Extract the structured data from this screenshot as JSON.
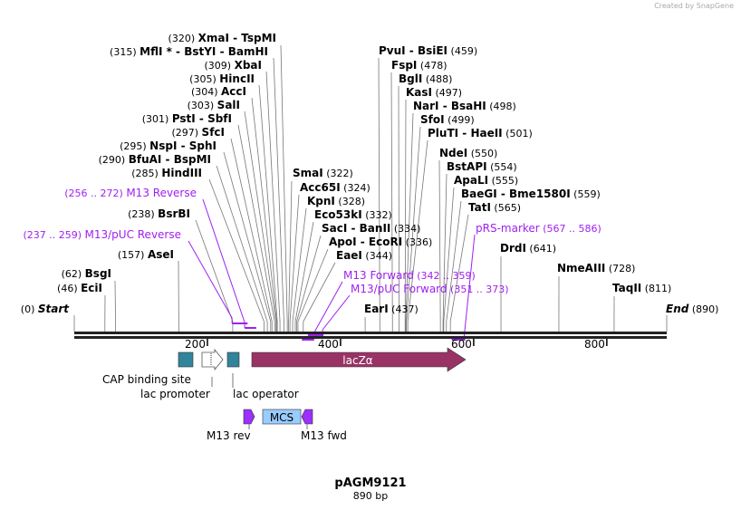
{
  "credit": "Created by SnapGene",
  "plasmid": {
    "name": "pAGM9121",
    "length_label": "890 bp",
    "length": 890
  },
  "ticks": [
    "200",
    "400",
    "600",
    "800"
  ],
  "start": {
    "label": "Start",
    "pos": "(0)"
  },
  "end": {
    "label": "End",
    "pos": "(890)"
  },
  "enzymes": [
    {
      "name": "XmaI  - TspMI",
      "pos": "(320)",
      "site": 320
    },
    {
      "name": "MflI * - BstYI  - BamHI",
      "pos": "(315)",
      "site": 315
    },
    {
      "name": "XbaI",
      "pos": "(309)",
      "site": 309
    },
    {
      "name": "HincII",
      "pos": "(305)",
      "site": 305
    },
    {
      "name": "AccI",
      "pos": "(304)",
      "site": 304
    },
    {
      "name": "SalI",
      "pos": "(303)",
      "site": 303
    },
    {
      "name": "PstI  - SbfI",
      "pos": "(301)",
      "site": 301
    },
    {
      "name": "SfcI",
      "pos": "(297)",
      "site": 297
    },
    {
      "name": "NspI  - SphI",
      "pos": "(295)",
      "site": 295
    },
    {
      "name": "BfuAI  - BspMI",
      "pos": "(290)",
      "site": 290
    },
    {
      "name": "HindIII",
      "pos": "(285)",
      "site": 285
    },
    {
      "name": "BsrBI",
      "pos": "(238)",
      "site": 238
    },
    {
      "name": "AseI",
      "pos": "(157)",
      "site": 157
    },
    {
      "name": "BsgI",
      "pos": "(62)",
      "site": 62
    },
    {
      "name": "EciI",
      "pos": "(46)",
      "site": 46
    },
    {
      "name": "SmaI",
      "pos": "(322)",
      "site": 322
    },
    {
      "name": "Acc65I",
      "pos": "(324)",
      "site": 324
    },
    {
      "name": "KpnI",
      "pos": "(328)",
      "site": 328
    },
    {
      "name": "Eco53kI",
      "pos": "(332)",
      "site": 332
    },
    {
      "name": "SacI  - BanII",
      "pos": "(334)",
      "site": 334
    },
    {
      "name": "ApoI  - EcoRI",
      "pos": "(336)",
      "site": 336
    },
    {
      "name": "EaeI",
      "pos": "(344)",
      "site": 344
    },
    {
      "name": "EarI",
      "pos": "(437)",
      "site": 437
    },
    {
      "name": "PvuI  - BsiEI",
      "pos": "(459)",
      "site": 459
    },
    {
      "name": "FspI",
      "pos": "(478)",
      "site": 478
    },
    {
      "name": "BglI",
      "pos": "(488)",
      "site": 488
    },
    {
      "name": "KasI",
      "pos": "(497)",
      "site": 497
    },
    {
      "name": "NarI  - BsaHI",
      "pos": "(498)",
      "site": 498
    },
    {
      "name": "SfoI",
      "pos": "(499)",
      "site": 499
    },
    {
      "name": "PluTI  - HaeII",
      "pos": "(501)",
      "site": 501
    },
    {
      "name": "NdeI",
      "pos": "(550)",
      "site": 550
    },
    {
      "name": "BstAPI",
      "pos": "(554)",
      "site": 554
    },
    {
      "name": "ApaLI",
      "pos": "(555)",
      "site": 555
    },
    {
      "name": "BaeGI  - Bme1580I",
      "pos": "(559)",
      "site": 559
    },
    {
      "name": "TatI",
      "pos": "(565)",
      "site": 565
    },
    {
      "name": "DrdI",
      "pos": "(641)",
      "site": 641
    },
    {
      "name": "NmeAIII",
      "pos": "(728)",
      "site": 728
    },
    {
      "name": "TaqII",
      "pos": "(811)",
      "site": 811
    }
  ],
  "primers": [
    {
      "name": "M13 Reverse",
      "range": "(256 .. 272)",
      "start": 256,
      "end": 272
    },
    {
      "name": "M13/pUC Reverse",
      "range": "(237 .. 259)",
      "start": 237,
      "end": 259
    },
    {
      "name": "M13 Forward",
      "range": "(342 .. 359)",
      "start": 342,
      "end": 359
    },
    {
      "name": "M13/pUC Forward",
      "range": "(351 .. 373)",
      "start": 351,
      "end": 373
    },
    {
      "name": "pRS-marker",
      "range": "(567 .. 586)",
      "start": 567,
      "end": 586
    }
  ],
  "features": {
    "cap": "CAP binding site",
    "promoter": "lac promoter",
    "operator": "lac operator",
    "lacz": "lacZα",
    "m13rev": "M13 rev",
    "mcs": "MCS",
    "m13fwd": "M13 fwd"
  },
  "colors": {
    "primer": "#a020f0",
    "lacz": "#993366",
    "teal": "#31849b",
    "mcs": "#99ccff",
    "primer_feature": "#9b30ff"
  }
}
